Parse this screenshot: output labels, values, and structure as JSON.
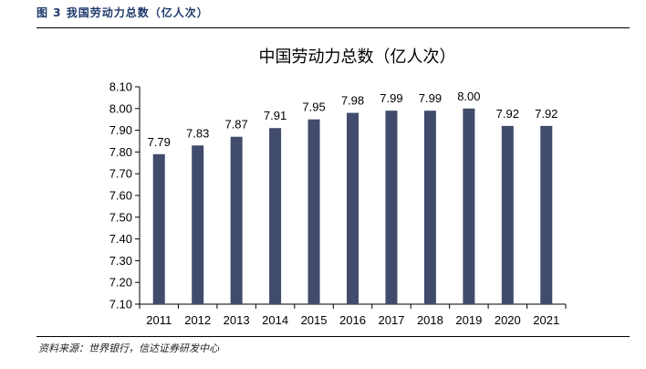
{
  "header": {
    "figure_caption": "图 3 我国劳动力总数（亿人次）"
  },
  "footer": {
    "source": "资料来源：世界银行，信达证券研发中心"
  },
  "colors": {
    "bar": "#414b6b",
    "caption": "#1f3a6b",
    "axis": "#000000"
  },
  "chart_data": {
    "type": "bar",
    "title": "中国劳动力总数（亿人次）",
    "xlabel": "",
    "ylabel": "",
    "categories": [
      "2011",
      "2012",
      "2013",
      "2014",
      "2015",
      "2016",
      "2017",
      "2018",
      "2019",
      "2020",
      "2021"
    ],
    "values": [
      7.79,
      7.83,
      7.87,
      7.91,
      7.95,
      7.98,
      7.99,
      7.99,
      8.0,
      7.92,
      7.92
    ],
    "value_labels": [
      "7.79",
      "7.83",
      "7.87",
      "7.91",
      "7.95",
      "7.98",
      "7.99",
      "7.99",
      "8.00",
      "7.92",
      "7.92"
    ],
    "ylim": [
      7.1,
      8.1
    ],
    "yticks": [
      "7.10",
      "7.20",
      "7.30",
      "7.40",
      "7.50",
      "7.60",
      "7.70",
      "7.80",
      "7.90",
      "8.00",
      "8.10"
    ],
    "grid": false,
    "legend": "none"
  }
}
